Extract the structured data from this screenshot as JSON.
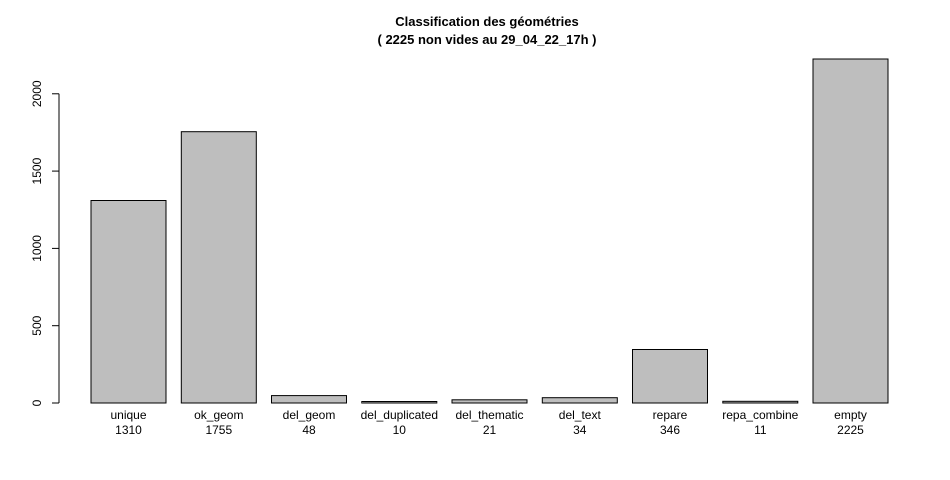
{
  "chart_data": {
    "type": "bar",
    "title": "Classification des géométries",
    "subtitle": "( 2225 non vides au  29_04_22_17h )",
    "xlabel": "",
    "ylabel": "",
    "ylim": [
      0,
      2225
    ],
    "yticks": [
      0,
      500,
      1000,
      1500,
      2000
    ],
    "bar_color": "#bebebe",
    "categories": [
      "unique",
      "ok_geom",
      "del_geom",
      "del_duplicated",
      "del_thematic",
      "del_text",
      "repare",
      "repa_combine",
      "empty"
    ],
    "value_labels": [
      "1310",
      "1755",
      "48",
      "10",
      "21",
      "34",
      "346",
      "11",
      "2225"
    ],
    "values": [
      1310,
      1755,
      48,
      10,
      21,
      34,
      346,
      11,
      2225
    ],
    "grid": false,
    "legend": "none"
  }
}
